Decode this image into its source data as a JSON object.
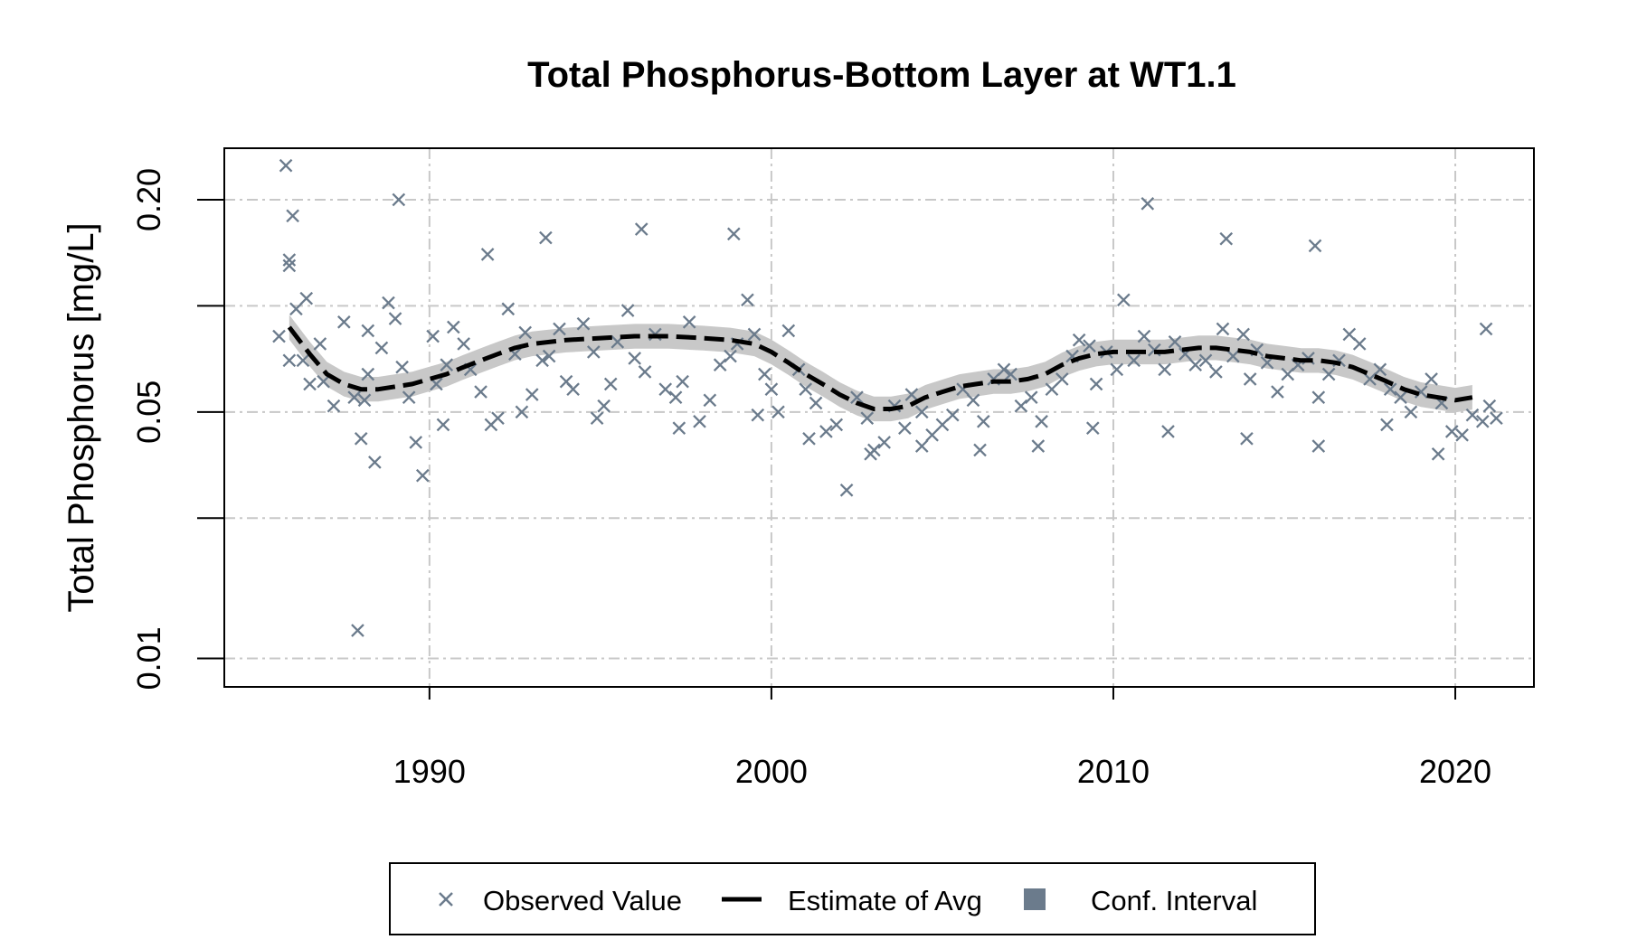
{
  "chart_data": {
    "type": "scatter",
    "title": "Total Phosphorus-Bottom Layer at WT1.1",
    "ylabel": "Total Phosphorus [mg/L]",
    "xlabel": "",
    "y_scale": "log",
    "xlim": [
      1984.0,
      2022.3
    ],
    "ylim": [
      0.0083,
      0.28
    ],
    "x_ticks": [
      1990,
      2000,
      2010,
      2020
    ],
    "x_tick_labels": [
      "1990",
      "2000",
      "2010",
      "2020"
    ],
    "y_ticks": [
      0.01,
      0.05,
      0.2
    ],
    "y_tick_labels": [
      "0.01",
      "0.05",
      "0.20"
    ],
    "y_minor_gridlines": [
      0.025,
      0.1
    ],
    "grid": true,
    "colors": {
      "observed": "#6b7b8c",
      "estimate": "#000000",
      "ci": "#c8c8c8",
      "grid": "#c8c8c8"
    },
    "legend": {
      "placement": "bottom",
      "entries": [
        {
          "label": "Observed Value",
          "symbol": "x"
        },
        {
          "label": "Estimate of Avg",
          "symbol": "dashed-line"
        },
        {
          "label": "Conf. Interval",
          "symbol": "square"
        }
      ]
    },
    "series": [
      {
        "name": "Observed Value",
        "points": [
          [
            1985.6,
            0.082
          ],
          [
            1985.8,
            0.25
          ],
          [
            1985.9,
            0.135
          ],
          [
            1986.0,
            0.18
          ],
          [
            1986.1,
            0.098
          ],
          [
            1985.9,
            0.07
          ],
          [
            1986.3,
            0.07
          ],
          [
            1986.5,
            0.06
          ],
          [
            1986.8,
            0.078
          ],
          [
            1986.9,
            0.061
          ],
          [
            1987.2,
            0.052
          ],
          [
            1987.5,
            0.09
          ],
          [
            1987.8,
            0.055
          ],
          [
            1988.0,
            0.042
          ],
          [
            1988.1,
            0.054
          ],
          [
            1988.2,
            0.064
          ],
          [
            1988.6,
            0.076
          ],
          [
            1988.8,
            0.102
          ],
          [
            1989.0,
            0.092
          ],
          [
            1989.2,
            0.067
          ],
          [
            1989.4,
            0.055
          ],
          [
            1989.6,
            0.041
          ],
          [
            1989.8,
            0.033
          ],
          [
            1990.1,
            0.082
          ],
          [
            1987.9,
            0.012
          ],
          [
            1988.4,
            0.036
          ],
          [
            1990.2,
            0.06
          ],
          [
            1990.5,
            0.068
          ],
          [
            1990.7,
            0.087
          ],
          [
            1991.0,
            0.078
          ],
          [
            1991.2,
            0.066
          ],
          [
            1991.5,
            0.057
          ],
          [
            1991.8,
            0.046
          ],
          [
            1992.0,
            0.048
          ],
          [
            1992.3,
            0.098
          ],
          [
            1992.5,
            0.073
          ],
          [
            1992.8,
            0.084
          ],
          [
            1993.0,
            0.056
          ],
          [
            1993.3,
            0.07
          ],
          [
            1993.5,
            0.072
          ],
          [
            1993.8,
            0.086
          ],
          [
            1994.0,
            0.061
          ],
          [
            1994.2,
            0.058
          ],
          [
            1994.5,
            0.089
          ],
          [
            1994.8,
            0.074
          ],
          [
            1995.1,
            0.052
          ],
          [
            1995.3,
            0.06
          ],
          [
            1995.5,
            0.079
          ],
          [
            1995.8,
            0.097
          ],
          [
            1996.0,
            0.071
          ],
          [
            1996.3,
            0.065
          ],
          [
            1996.6,
            0.083
          ],
          [
            1996.9,
            0.058
          ],
          [
            1997.2,
            0.055
          ],
          [
            1997.4,
            0.061
          ],
          [
            1997.6,
            0.09
          ],
          [
            1997.9,
            0.047
          ],
          [
            1998.2,
            0.054
          ],
          [
            1998.5,
            0.068
          ],
          [
            1998.8,
            0.072
          ],
          [
            1999.0,
            0.078
          ],
          [
            1999.3,
            0.104
          ],
          [
            1999.5,
            0.083
          ],
          [
            1999.8,
            0.064
          ],
          [
            2000.0,
            0.058
          ],
          [
            2000.2,
            0.05
          ],
          [
            2000.5,
            0.085
          ],
          [
            2000.8,
            0.066
          ],
          [
            2001.0,
            0.058
          ],
          [
            2001.3,
            0.053
          ],
          [
            2001.6,
            0.044
          ],
          [
            2001.9,
            0.046
          ],
          [
            2002.2,
            0.03
          ],
          [
            2002.5,
            0.055
          ],
          [
            2002.8,
            0.048
          ],
          [
            2003.0,
            0.039
          ],
          [
            2003.3,
            0.041
          ],
          [
            2003.6,
            0.052
          ],
          [
            2003.9,
            0.045
          ],
          [
            2004.1,
            0.056
          ],
          [
            2004.4,
            0.05
          ],
          [
            2004.7,
            0.043
          ],
          [
            2005.0,
            0.046
          ],
          [
            2005.3,
            0.049
          ],
          [
            2005.6,
            0.058
          ],
          [
            2005.9,
            0.054
          ],
          [
            2006.2,
            0.047
          ],
          [
            2006.5,
            0.062
          ],
          [
            2006.8,
            0.066
          ],
          [
            2007.0,
            0.064
          ],
          [
            2007.3,
            0.052
          ],
          [
            2007.6,
            0.055
          ],
          [
            2007.9,
            0.047
          ],
          [
            2008.2,
            0.058
          ],
          [
            2008.5,
            0.062
          ],
          [
            2008.8,
            0.072
          ],
          [
            2009.0,
            0.08
          ],
          [
            2009.3,
            0.077
          ],
          [
            2009.5,
            0.06
          ],
          [
            2009.8,
            0.074
          ],
          [
            2010.1,
            0.066
          ],
          [
            2010.3,
            0.104
          ],
          [
            2010.6,
            0.07
          ],
          [
            2010.9,
            0.082
          ],
          [
            2011.2,
            0.075
          ],
          [
            2011.5,
            0.066
          ],
          [
            2011.8,
            0.079
          ],
          [
            2012.1,
            0.073
          ],
          [
            2012.4,
            0.068
          ],
          [
            2012.7,
            0.07
          ],
          [
            2013.0,
            0.065
          ],
          [
            2013.2,
            0.086
          ],
          [
            2013.5,
            0.072
          ],
          [
            2013.8,
            0.083
          ],
          [
            2014.0,
            0.062
          ],
          [
            2014.2,
            0.075
          ],
          [
            2014.5,
            0.069
          ],
          [
            2014.8,
            0.057
          ],
          [
            2015.1,
            0.064
          ],
          [
            2015.4,
            0.068
          ],
          [
            2015.7,
            0.071
          ],
          [
            2016.0,
            0.055
          ],
          [
            2016.3,
            0.064
          ],
          [
            2016.6,
            0.07
          ],
          [
            2016.9,
            0.083
          ],
          [
            2017.2,
            0.078
          ],
          [
            2017.5,
            0.062
          ],
          [
            2017.8,
            0.066
          ],
          [
            2018.1,
            0.058
          ],
          [
            2018.4,
            0.055
          ],
          [
            2018.7,
            0.05
          ],
          [
            2019.0,
            0.057
          ],
          [
            2019.3,
            0.062
          ],
          [
            2019.6,
            0.053
          ],
          [
            2019.9,
            0.044
          ],
          [
            2020.2,
            0.043
          ],
          [
            2020.5,
            0.049
          ],
          [
            2020.8,
            0.047
          ],
          [
            2021.0,
            0.052
          ],
          [
            2020.9,
            0.086
          ],
          [
            2021.2,
            0.048
          ],
          [
            1989.1,
            0.2
          ],
          [
            2011.0,
            0.195
          ],
          [
            1996.2,
            0.165
          ],
          [
            1998.9,
            0.16
          ],
          [
            1993.4,
            0.156
          ],
          [
            2013.3,
            0.155
          ],
          [
            2015.9,
            0.148
          ],
          [
            1991.7,
            0.14
          ],
          [
            1985.9,
            0.13
          ],
          [
            1986.4,
            0.105
          ],
          [
            1988.2,
            0.085
          ],
          [
            1990.4,
            0.046
          ],
          [
            1992.7,
            0.05
          ],
          [
            1994.9,
            0.048
          ],
          [
            1997.3,
            0.045
          ],
          [
            1999.6,
            0.049
          ],
          [
            2001.1,
            0.042
          ],
          [
            2002.9,
            0.038
          ],
          [
            2004.4,
            0.04
          ],
          [
            2006.1,
            0.039
          ],
          [
            2007.8,
            0.04
          ],
          [
            2009.4,
            0.045
          ],
          [
            2011.6,
            0.044
          ],
          [
            2013.9,
            0.042
          ],
          [
            2016.0,
            0.04
          ],
          [
            2018.0,
            0.046
          ],
          [
            2019.5,
            0.038
          ]
        ]
      },
      {
        "name": "Estimate of Avg",
        "points": [
          [
            1985.9,
            0.087
          ],
          [
            1986.5,
            0.073
          ],
          [
            1987.0,
            0.064
          ],
          [
            1987.5,
            0.06
          ],
          [
            1988.0,
            0.058
          ],
          [
            1988.5,
            0.058
          ],
          [
            1989.0,
            0.059
          ],
          [
            1989.5,
            0.06
          ],
          [
            1990.0,
            0.062
          ],
          [
            1990.5,
            0.064
          ],
          [
            1991.0,
            0.067
          ],
          [
            1991.5,
            0.07
          ],
          [
            1992.0,
            0.073
          ],
          [
            1992.5,
            0.076
          ],
          [
            1993.0,
            0.078
          ],
          [
            1994.0,
            0.08
          ],
          [
            1995.0,
            0.081
          ],
          [
            1996.0,
            0.082
          ],
          [
            1997.0,
            0.082
          ],
          [
            1998.0,
            0.081
          ],
          [
            1998.8,
            0.08
          ],
          [
            1999.5,
            0.078
          ],
          [
            2000.0,
            0.074
          ],
          [
            2000.5,
            0.069
          ],
          [
            2001.0,
            0.064
          ],
          [
            2001.5,
            0.06
          ],
          [
            2002.0,
            0.056
          ],
          [
            2002.5,
            0.053
          ],
          [
            2003.0,
            0.051
          ],
          [
            2003.5,
            0.051
          ],
          [
            2004.0,
            0.052
          ],
          [
            2004.5,
            0.055
          ],
          [
            2005.0,
            0.057
          ],
          [
            2005.5,
            0.059
          ],
          [
            2006.0,
            0.06
          ],
          [
            2006.5,
            0.061
          ],
          [
            2007.0,
            0.061
          ],
          [
            2007.5,
            0.062
          ],
          [
            2008.0,
            0.064
          ],
          [
            2008.5,
            0.068
          ],
          [
            2009.0,
            0.071
          ],
          [
            2009.5,
            0.073
          ],
          [
            2010.0,
            0.074
          ],
          [
            2010.5,
            0.074
          ],
          [
            2011.0,
            0.074
          ],
          [
            2011.5,
            0.074
          ],
          [
            2012.0,
            0.075
          ],
          [
            2012.5,
            0.076
          ],
          [
            2013.0,
            0.076
          ],
          [
            2013.5,
            0.075
          ],
          [
            2014.0,
            0.074
          ],
          [
            2014.5,
            0.072
          ],
          [
            2015.0,
            0.071
          ],
          [
            2015.5,
            0.07
          ],
          [
            2016.0,
            0.07
          ],
          [
            2016.5,
            0.069
          ],
          [
            2017.0,
            0.067
          ],
          [
            2017.5,
            0.064
          ],
          [
            2018.0,
            0.061
          ],
          [
            2018.5,
            0.058
          ],
          [
            2019.0,
            0.056
          ],
          [
            2019.5,
            0.055
          ],
          [
            2020.0,
            0.054
          ],
          [
            2020.5,
            0.055
          ]
        ]
      },
      {
        "name": "Conf. Interval",
        "ci_halfwidth_log10": 0.035
      }
    ]
  }
}
